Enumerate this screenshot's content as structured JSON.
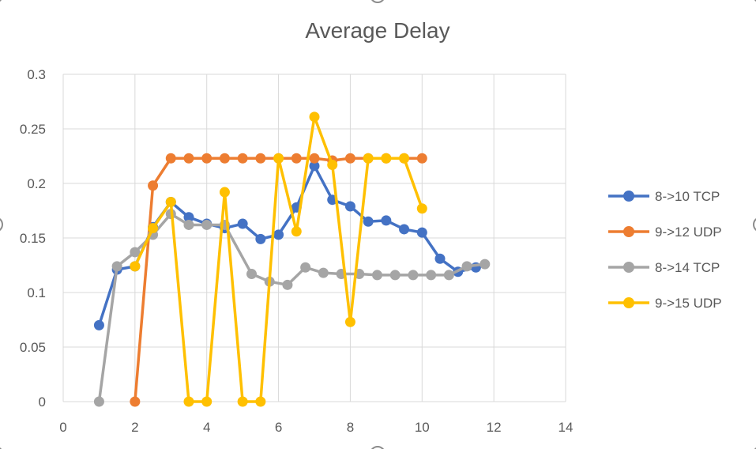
{
  "chart_data": {
    "type": "scatter",
    "title": "Average Delay",
    "xlabel": "",
    "ylabel": "",
    "xlim": [
      0,
      14
    ],
    "ylim": [
      0,
      0.3
    ],
    "xticks": [
      0,
      2,
      4,
      6,
      8,
      10,
      12,
      14
    ],
    "xtick_labels": [
      "0",
      "2",
      "4",
      "6",
      "8",
      "10",
      "12",
      "14"
    ],
    "yticks": [
      0,
      0.05,
      0.1,
      0.15,
      0.2,
      0.25,
      0.3
    ],
    "ytick_labels": [
      "0",
      "0.05",
      "0.1",
      "0.15",
      "0.2",
      "0.25",
      "0.3"
    ],
    "grid": true,
    "legend_position": "right",
    "series": [
      {
        "name": "8->10 TCP",
        "color": "#4472c4",
        "points": [
          [
            1.0,
            0.07
          ],
          [
            1.5,
            0.121
          ],
          [
            2.0,
            0.124
          ],
          [
            2.5,
            0.16
          ],
          [
            3.0,
            0.183
          ],
          [
            3.5,
            0.169
          ],
          [
            4.0,
            0.163
          ],
          [
            4.5,
            0.159
          ],
          [
            5.0,
            0.163
          ],
          [
            5.5,
            0.149
          ],
          [
            6.0,
            0.153
          ],
          [
            6.5,
            0.178
          ],
          [
            7.0,
            0.216
          ],
          [
            7.5,
            0.185
          ],
          [
            8.0,
            0.179
          ],
          [
            8.5,
            0.165
          ],
          [
            9.0,
            0.166
          ],
          [
            9.5,
            0.158
          ],
          [
            10.0,
            0.155
          ],
          [
            10.5,
            0.131
          ],
          [
            11.0,
            0.119
          ],
          [
            11.5,
            0.123
          ]
        ]
      },
      {
        "name": "9->12 UDP",
        "color": "#ed7d31",
        "points": [
          [
            2.0,
            0.0
          ],
          [
            2.5,
            0.198
          ],
          [
            3.0,
            0.223
          ],
          [
            3.5,
            0.223
          ],
          [
            4.0,
            0.223
          ],
          [
            4.5,
            0.223
          ],
          [
            5.0,
            0.223
          ],
          [
            5.5,
            0.223
          ],
          [
            6.0,
            0.223
          ],
          [
            6.5,
            0.223
          ],
          [
            7.0,
            0.223
          ],
          [
            7.5,
            0.221
          ],
          [
            8.0,
            0.223
          ],
          [
            8.5,
            0.223
          ],
          [
            9.0,
            0.223
          ],
          [
            9.5,
            0.223
          ],
          [
            10.0,
            0.223
          ]
        ]
      },
      {
        "name": "8->14 TCP",
        "color": "#a5a5a5",
        "points": [
          [
            1.0,
            0.0
          ],
          [
            1.5,
            0.124
          ],
          [
            2.0,
            0.137
          ],
          [
            2.5,
            0.153
          ],
          [
            3.0,
            0.172
          ],
          [
            3.5,
            0.162
          ],
          [
            4.0,
            0.162
          ],
          [
            4.5,
            0.162
          ],
          [
            5.25,
            0.117
          ],
          [
            5.75,
            0.11
          ],
          [
            6.25,
            0.107
          ],
          [
            6.75,
            0.123
          ],
          [
            7.25,
            0.118
          ],
          [
            7.75,
            0.117
          ],
          [
            8.25,
            0.117
          ],
          [
            8.75,
            0.116
          ],
          [
            9.25,
            0.116
          ],
          [
            9.75,
            0.116
          ],
          [
            10.25,
            0.116
          ],
          [
            10.75,
            0.116
          ],
          [
            11.25,
            0.124
          ],
          [
            11.75,
            0.126
          ]
        ]
      },
      {
        "name": "9->15 UDP",
        "color": "#ffc000",
        "points": [
          [
            2.0,
            0.124
          ],
          [
            2.5,
            0.159
          ],
          [
            3.0,
            0.183
          ],
          [
            3.5,
            0.0
          ],
          [
            4.0,
            0.0
          ],
          [
            4.5,
            0.192
          ],
          [
            5.0,
            0.0
          ],
          [
            5.5,
            0.0
          ],
          [
            6.0,
            0.223
          ],
          [
            6.5,
            0.156
          ],
          [
            7.0,
            0.261
          ],
          [
            7.5,
            0.217
          ],
          [
            8.0,
            0.073
          ],
          [
            8.5,
            0.223
          ],
          [
            9.0,
            0.223
          ],
          [
            9.5,
            0.223
          ],
          [
            10.0,
            0.177
          ]
        ]
      }
    ]
  }
}
